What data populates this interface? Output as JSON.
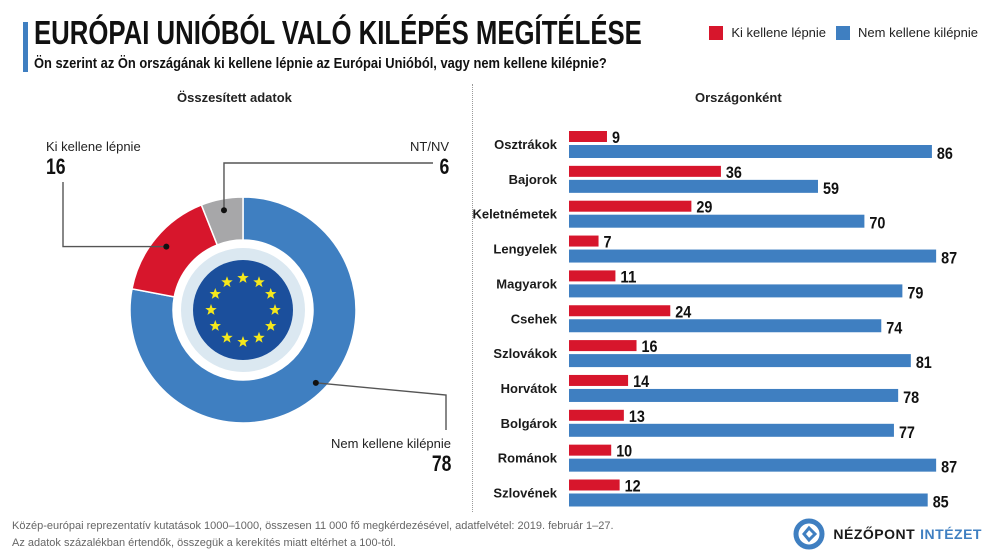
{
  "header": {
    "title": "EURÓPAI UNIÓBÓL VALÓ KILÉPÉS MEGÍTÉLÉSE",
    "subtitle": "Ön szerint az Ön országának ki kellene lépnie az Európai Unióból, vagy nem kellene kilépnie?"
  },
  "legend": [
    {
      "label": "Ki kellene lépnie",
      "color": "#d7162c"
    },
    {
      "label": "Nem kellene kilépnie",
      "color": "#3f7fc1"
    }
  ],
  "colors": {
    "leave": "#d7162c",
    "stay": "#3f7fc1",
    "dontknow": "#a7a7a9",
    "accent": "#3f7fc1",
    "eu_blue": "#1b4f9c",
    "eu_star": "#f5e81c"
  },
  "chart_data": [
    {
      "type": "pie",
      "title": "Összesített adatok",
      "slices": [
        {
          "label": "Nem kellene kilépnie",
          "value": 78,
          "color": "#3f7fc1"
        },
        {
          "label": "Ki kellene lépnie",
          "value": 16,
          "color": "#d7162c"
        },
        {
          "label": "NT/NV",
          "value": 6,
          "color": "#a7a7a9"
        }
      ],
      "center_icon": "eu-flag-icon"
    },
    {
      "type": "bar",
      "orientation": "horizontal",
      "title": "Országonként",
      "categories": [
        "Osztrákok",
        "Bajorok",
        "Keletnémetek",
        "Lengyelek",
        "Magyarok",
        "Csehek",
        "Szlovákok",
        "Horvátok",
        "Bolgárok",
        "Románok",
        "Szlovének"
      ],
      "series": [
        {
          "name": "Ki kellene lépnie",
          "color": "#d7162c",
          "values": [
            9,
            36,
            29,
            7,
            11,
            24,
            16,
            14,
            13,
            10,
            12
          ]
        },
        {
          "name": "Nem kellene kilépnie",
          "color": "#3f7fc1",
          "values": [
            86,
            59,
            70,
            87,
            79,
            74,
            81,
            78,
            77,
            87,
            85
          ]
        }
      ],
      "xlim": [
        0,
        100
      ],
      "grid": false,
      "legend": "top-right"
    }
  ],
  "footer": {
    "note1": "Közép-európai reprezentatív kutatások 1000–1000, összesen 11 000 fő megkérdezésével, adatfelvétel: 2019. február 1–27.",
    "note2": "Az adatok százalékban értendők, összegük a kerekítés miatt eltérhet a 100-tól.",
    "brand_primary": "NÉZŐPONT",
    "brand_secondary": "INTÉZET"
  }
}
